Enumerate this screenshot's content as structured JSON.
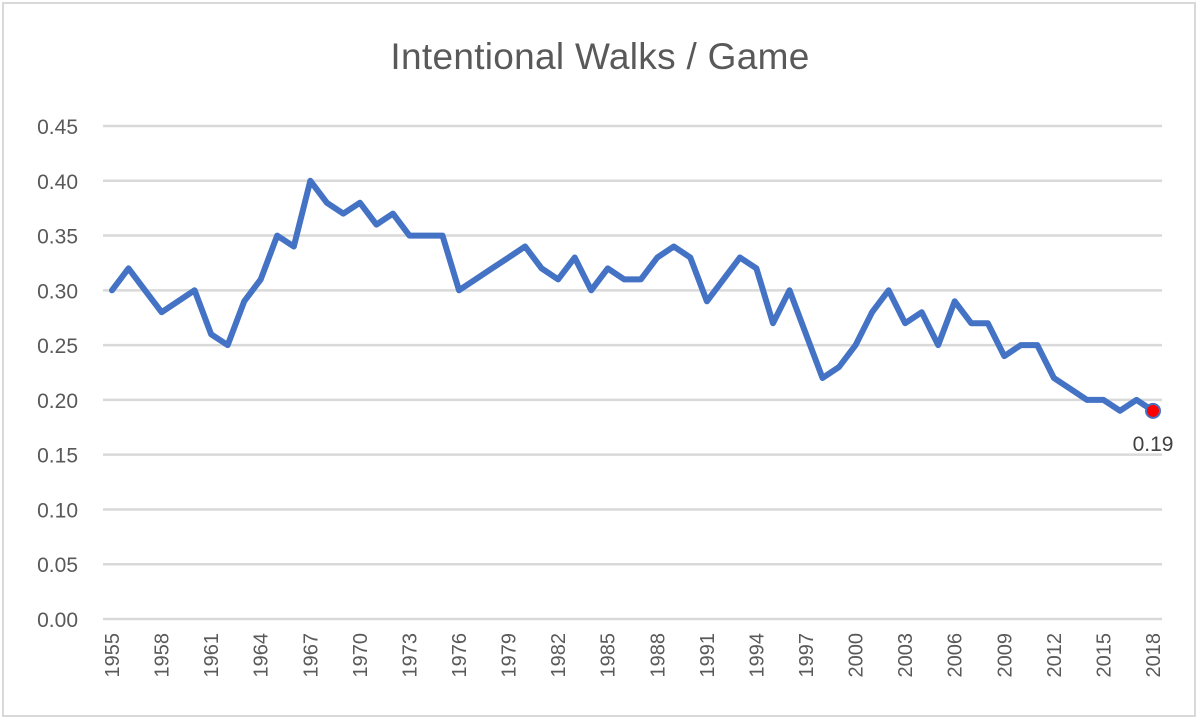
{
  "chart_data": {
    "type": "line",
    "title": "Intentional Walks / Game",
    "xlabel": "",
    "ylabel": "",
    "ylim": [
      0,
      0.45
    ],
    "yticks": [
      "0.00",
      "0.05",
      "0.10",
      "0.15",
      "0.20",
      "0.25",
      "0.30",
      "0.35",
      "0.40",
      "0.45"
    ],
    "xtick_labels": [
      "1955",
      "1958",
      "1961",
      "1964",
      "1967",
      "1970",
      "1973",
      "1976",
      "1979",
      "1982",
      "1985",
      "1988",
      "1991",
      "1994",
      "1997",
      "2000",
      "2003",
      "2006",
      "2009",
      "2012",
      "2015",
      "2018"
    ],
    "grid": true,
    "legend": "none",
    "x": [
      1955,
      1956,
      1957,
      1958,
      1959,
      1960,
      1961,
      1962,
      1963,
      1964,
      1965,
      1966,
      1967,
      1968,
      1969,
      1970,
      1971,
      1972,
      1973,
      1974,
      1975,
      1976,
      1977,
      1978,
      1979,
      1980,
      1981,
      1982,
      1983,
      1984,
      1985,
      1986,
      1987,
      1988,
      1989,
      1990,
      1991,
      1992,
      1993,
      1994,
      1995,
      1996,
      1997,
      1998,
      1999,
      2000,
      2001,
      2002,
      2003,
      2004,
      2005,
      2006,
      2007,
      2008,
      2009,
      2010,
      2011,
      2012,
      2013,
      2014,
      2015,
      2016,
      2017,
      2018
    ],
    "series": [
      {
        "name": "Intentional Walks / Game",
        "color": "#4472c4",
        "values": [
          0.3,
          0.32,
          0.3,
          0.28,
          0.29,
          0.3,
          0.26,
          0.25,
          0.29,
          0.31,
          0.35,
          0.34,
          0.4,
          0.38,
          0.37,
          0.38,
          0.36,
          0.37,
          0.35,
          0.35,
          0.35,
          0.3,
          0.31,
          0.32,
          0.33,
          0.34,
          0.32,
          0.31,
          0.33,
          0.3,
          0.32,
          0.31,
          0.31,
          0.33,
          0.34,
          0.33,
          0.29,
          0.31,
          0.33,
          0.32,
          0.27,
          0.3,
          0.26,
          0.22,
          0.23,
          0.25,
          0.28,
          0.3,
          0.27,
          0.28,
          0.25,
          0.29,
          0.27,
          0.27,
          0.24,
          0.25,
          0.25,
          0.22,
          0.21,
          0.2,
          0.2,
          0.19,
          0.2,
          0.19
        ]
      }
    ],
    "annotations": [
      {
        "x": 2018,
        "y": 0.19,
        "text": "0.19",
        "marker_color": "#ff0000"
      }
    ]
  }
}
